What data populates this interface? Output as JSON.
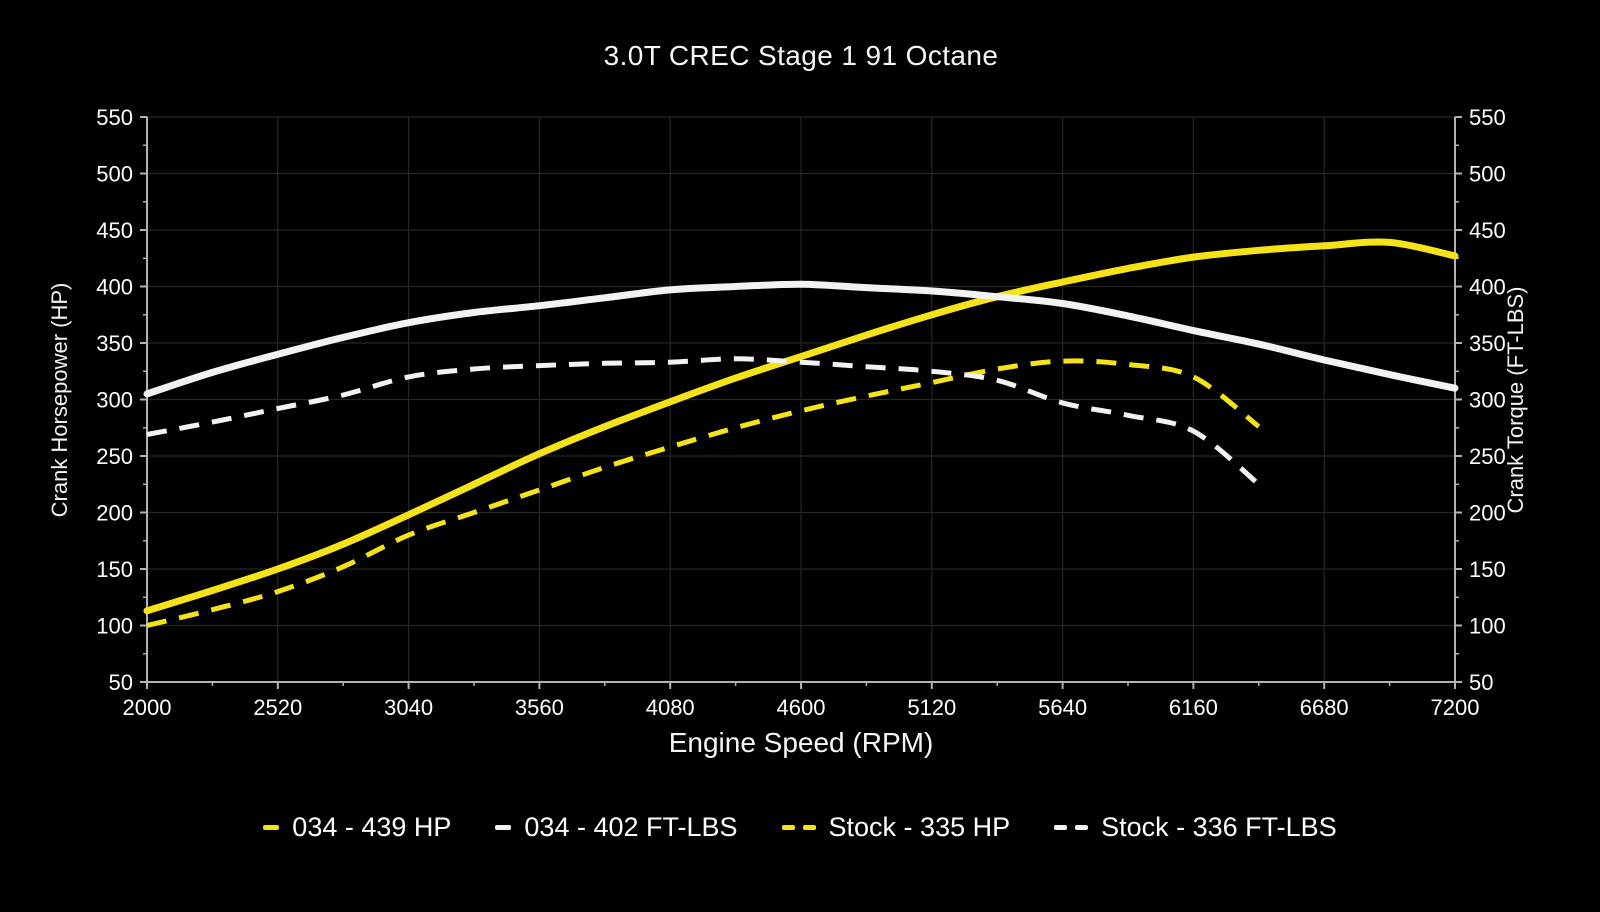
{
  "chart_data": {
    "type": "line",
    "title": "3.0T CREC Stage 1 91 Octane",
    "xlabel": "Engine Speed (RPM)",
    "ylabel_left": "Crank Horsepower (HP)",
    "ylabel_right": "Crank Torque (FT-LBS)",
    "xlim": [
      2000,
      7200
    ],
    "ylim": [
      50,
      550
    ],
    "x_ticks": [
      2000,
      2520,
      3040,
      3560,
      4080,
      4600,
      5120,
      5640,
      6160,
      6680,
      7200
    ],
    "y_ticks": [
      50,
      100,
      150,
      200,
      250,
      300,
      350,
      400,
      450,
      500,
      550
    ],
    "grid": true,
    "legend_position": "bottom",
    "colors": {
      "background": "#000000",
      "gridline": "#262626",
      "axis": "#b3b3b3",
      "text": "#ffffff",
      "yellow": "#f5e318",
      "white": "#f2f2f2"
    },
    "series": [
      {
        "name": "034 - 439 HP",
        "color": "#f5e318",
        "style": "solid",
        "axis": "left",
        "x": [
          2000,
          2260,
          2520,
          2780,
          3040,
          3300,
          3560,
          3820,
          4080,
          4340,
          4600,
          4860,
          5120,
          5380,
          5640,
          5900,
          6160,
          6420,
          6680,
          6940,
          7200
        ],
        "values": [
          113,
          131,
          150,
          172,
          198,
          225,
          252,
          276,
          298,
          319,
          338,
          357,
          375,
          391,
          404,
          416,
          426,
          432,
          436,
          439,
          427
        ]
      },
      {
        "name": "034 - 402 FT-LBS",
        "color": "#f2f2f2",
        "style": "solid",
        "axis": "right",
        "x": [
          2000,
          2260,
          2520,
          2780,
          3040,
          3300,
          3560,
          3820,
          4080,
          4340,
          4600,
          4860,
          5120,
          5380,
          5640,
          5900,
          6160,
          6420,
          6680,
          6940,
          7200
        ],
        "values": [
          305,
          324,
          340,
          355,
          368,
          377,
          383,
          390,
          397,
          400,
          402,
          399,
          396,
          391,
          385,
          374,
          361,
          349,
          335,
          322,
          310
        ]
      },
      {
        "name": "Stock - 335 HP",
        "color": "#f5e318",
        "style": "dashed",
        "axis": "left",
        "x": [
          2000,
          2260,
          2520,
          2780,
          3040,
          3300,
          3560,
          3820,
          4080,
          4340,
          4600,
          4860,
          5120,
          5380,
          5640,
          5900,
          6160,
          6420
        ],
        "values": [
          100,
          114,
          130,
          152,
          180,
          200,
          220,
          240,
          258,
          275,
          290,
          303,
          315,
          327,
          334,
          331,
          320,
          276
        ]
      },
      {
        "name": "Stock - 336 FT-LBS",
        "color": "#f2f2f2",
        "style": "dashed",
        "axis": "right",
        "x": [
          2000,
          2260,
          2520,
          2780,
          3040,
          3300,
          3560,
          3820,
          4080,
          4340,
          4600,
          4860,
          5120,
          5380,
          5640,
          5900,
          6160,
          6420
        ],
        "values": [
          269,
          280,
          292,
          304,
          320,
          327,
          330,
          332,
          333,
          336,
          333,
          329,
          325,
          317,
          297,
          286,
          272,
          225
        ]
      }
    ]
  }
}
